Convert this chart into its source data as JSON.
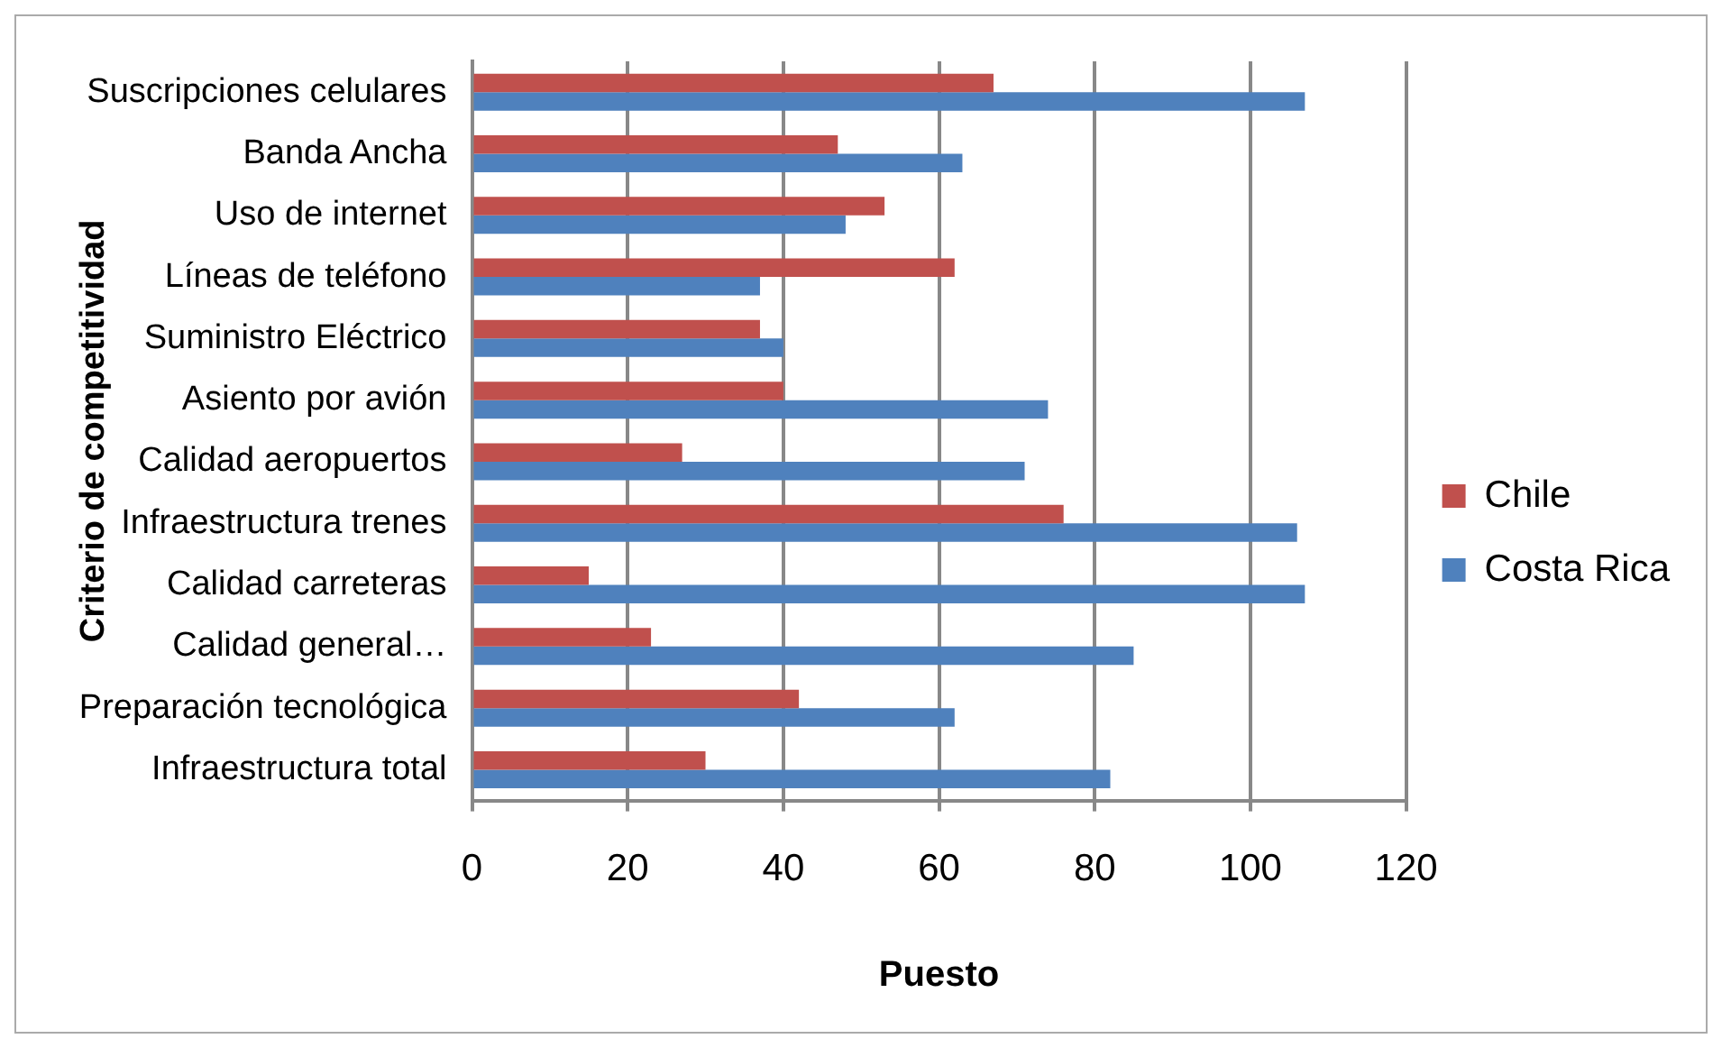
{
  "chart_data": {
    "type": "bar",
    "orientation": "horizontal",
    "xlabel": "Puesto",
    "ylabel": "Criterio de competitividad",
    "categories": [
      "Suscripciones celulares",
      "Banda Ancha",
      "Uso de internet",
      "Líneas de teléfono",
      "Suministro Eléctrico",
      "Asiento por avión",
      "Calidad aeropuertos",
      "Infraestructura trenes",
      "Calidad carreteras",
      "Calidad general…",
      "Preparación tecnológica",
      "Infraestructura total"
    ],
    "series": [
      {
        "name": "Chile",
        "color": "#c0504d",
        "values": [
          67,
          47,
          53,
          62,
          37,
          40,
          27,
          76,
          15,
          23,
          42,
          30
        ]
      },
      {
        "name": "Costa Rica",
        "color": "#4f81bd",
        "values": [
          107,
          63,
          48,
          37,
          40,
          74,
          71,
          106,
          107,
          85,
          62,
          82
        ]
      }
    ],
    "xlim": [
      0,
      120
    ],
    "xticks": [
      0,
      20,
      40,
      60,
      80,
      100,
      120
    ],
    "grid": "x",
    "legend": "right"
  }
}
